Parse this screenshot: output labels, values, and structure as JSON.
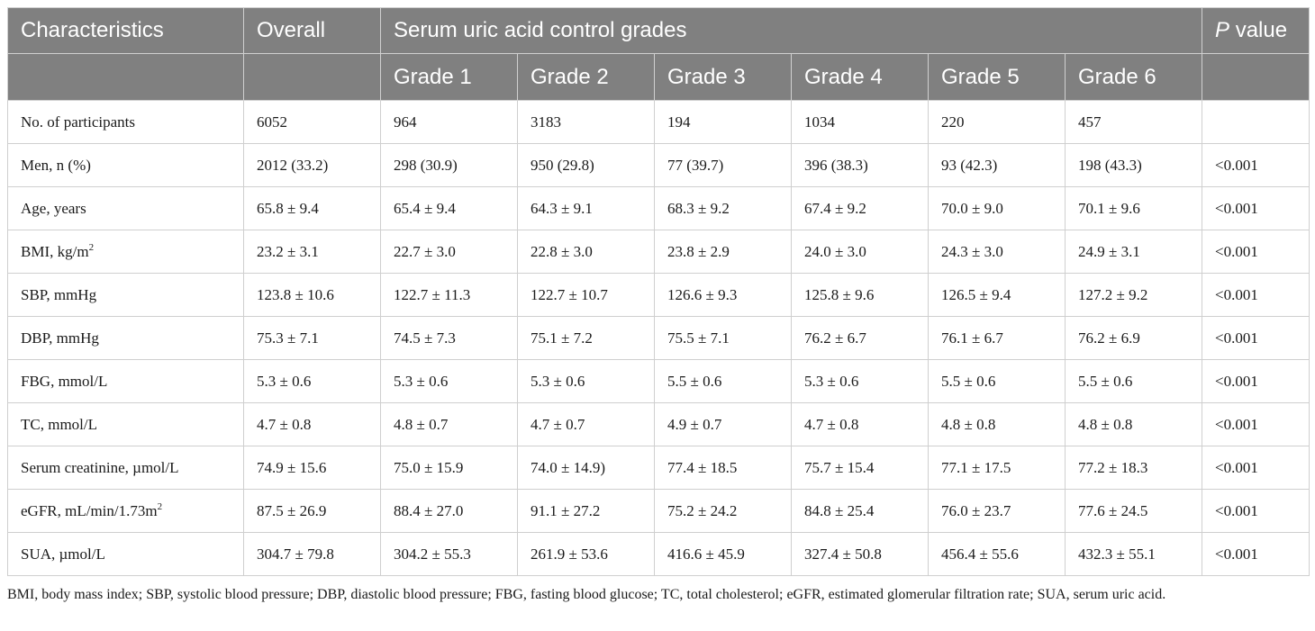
{
  "table": {
    "header": {
      "characteristics": "Characteristics",
      "overall": "Overall",
      "grades_group": "Serum uric acid control grades",
      "p_value_italic": "P",
      "p_value_rest": " value",
      "grades": [
        "Grade 1",
        "Grade 2",
        "Grade 3",
        "Grade 4",
        "Grade 5",
        "Grade 6"
      ]
    },
    "rows": [
      {
        "label": "No. of participants",
        "label_sup": "",
        "label_tail": "",
        "values": [
          "6052",
          "964",
          "3183",
          "194",
          "1034",
          "220",
          "457"
        ],
        "p": ""
      },
      {
        "label": "Men, n (%)",
        "label_sup": "",
        "label_tail": "",
        "values": [
          "2012 (33.2)",
          "298 (30.9)",
          "950 (29.8)",
          "77 (39.7)",
          "396 (38.3)",
          "93 (42.3)",
          "198 (43.3)"
        ],
        "p": "<0.001"
      },
      {
        "label": "Age, years",
        "label_sup": "",
        "label_tail": "",
        "values": [
          "65.8 ± 9.4",
          "65.4 ± 9.4",
          "64.3 ± 9.1",
          "68.3 ± 9.2",
          "67.4 ± 9.2",
          "70.0 ± 9.0",
          "70.1 ± 9.6"
        ],
        "p": "<0.001"
      },
      {
        "label": "BMI, kg/m",
        "label_sup": "2",
        "label_tail": "",
        "values": [
          "23.2 ± 3.1",
          "22.7 ± 3.0",
          "22.8 ± 3.0",
          "23.8 ± 2.9",
          "24.0 ± 3.0",
          "24.3 ± 3.0",
          "24.9 ± 3.1"
        ],
        "p": "<0.001"
      },
      {
        "label": "SBP, mmHg",
        "label_sup": "",
        "label_tail": "",
        "values": [
          "123.8 ± 10.6",
          "122.7 ± 11.3",
          "122.7 ± 10.7",
          "126.6 ± 9.3",
          "125.8 ± 9.6",
          "126.5 ± 9.4",
          "127.2 ± 9.2"
        ],
        "p": "<0.001"
      },
      {
        "label": "DBP, mmHg",
        "label_sup": "",
        "label_tail": "",
        "values": [
          "75.3 ± 7.1",
          "74.5 ± 7.3",
          "75.1 ± 7.2",
          "75.5 ± 7.1",
          "76.2 ± 6.7",
          "76.1 ± 6.7",
          "76.2 ± 6.9"
        ],
        "p": "<0.001"
      },
      {
        "label": "FBG, mmol/L",
        "label_sup": "",
        "label_tail": "",
        "values": [
          "5.3 ± 0.6",
          "5.3 ± 0.6",
          "5.3 ± 0.6",
          "5.5 ± 0.6",
          "5.3 ± 0.6",
          "5.5 ± 0.6",
          "5.5 ± 0.6"
        ],
        "p": "<0.001"
      },
      {
        "label": "TC, mmol/L",
        "label_sup": "",
        "label_tail": "",
        "values": [
          "4.7 ± 0.8",
          "4.8 ± 0.7",
          "4.7 ± 0.7",
          "4.9 ± 0.7",
          "4.7 ± 0.8",
          "4.8 ± 0.8",
          "4.8 ± 0.8"
        ],
        "p": "<0.001"
      },
      {
        "label": "Serum creatinine, µmol/L",
        "label_sup": "",
        "label_tail": "",
        "values": [
          "74.9 ± 15.6",
          "75.0 ± 15.9",
          "74.0 ± 14.9)",
          "77.4 ± 18.5",
          "75.7 ± 15.4",
          "77.1 ± 17.5",
          "77.2 ± 18.3"
        ],
        "p": "<0.001"
      },
      {
        "label": "eGFR, mL/min/1.73m",
        "label_sup": "2",
        "label_tail": "",
        "values": [
          "87.5 ± 26.9",
          "88.4 ± 27.0",
          "91.1 ± 27.2",
          "75.2 ± 24.2",
          "84.8 ± 25.4",
          "76.0 ± 23.7",
          "77.6 ± 24.5"
        ],
        "p": "<0.001"
      },
      {
        "label": "SUA, µmol/L",
        "label_sup": "",
        "label_tail": "",
        "values": [
          "304.7 ± 79.8",
          "304.2 ± 55.3",
          "261.9 ± 53.6",
          "416.6 ± 45.9",
          "327.4 ± 50.8",
          "456.4 ± 55.6",
          "432.3 ± 55.1"
        ],
        "p": "<0.001"
      }
    ]
  },
  "footnote": "BMI, body mass index; SBP, systolic blood pressure; DBP, diastolic blood pressure; FBG, fasting blood glucose; TC, total cholesterol; eGFR, estimated glomerular filtration rate; SUA, serum uric acid.",
  "colors": {
    "header_bg": "#808080",
    "header_text": "#ffffff",
    "grid": "#cfcfcf"
  }
}
